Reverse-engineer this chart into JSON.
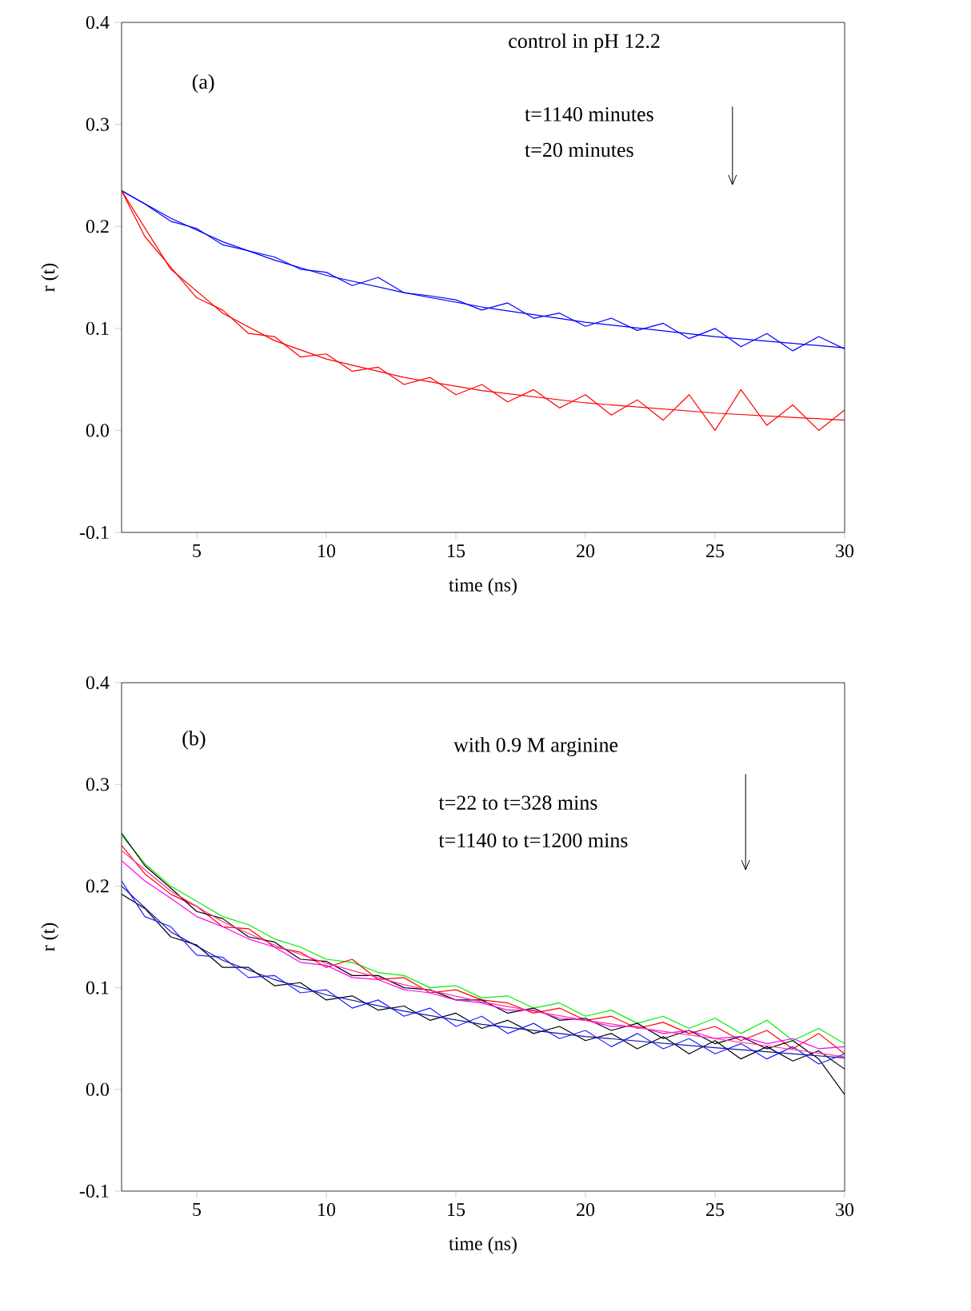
{
  "chart_data": [
    {
      "type": "line",
      "xlabel": "time (ns)",
      "ylabel": "r (t)",
      "xlim": [
        2.1,
        30
      ],
      "ylim": [
        -0.1,
        0.4
      ],
      "xticks": [
        5,
        10,
        15,
        20,
        25,
        30
      ],
      "yticks": [
        -0.1,
        {
          "value": 0,
          "label": "0.0"
        },
        0.1,
        0.2,
        0.3,
        0.4
      ],
      "annotations": [
        "(a)",
        "control in pH 12.2",
        "t=1140 minutes",
        "t=20 minutes"
      ],
      "x": [
        2.1,
        3,
        4,
        5,
        6,
        7,
        8,
        9,
        10,
        11,
        12,
        13,
        14,
        15,
        16,
        17,
        18,
        19,
        20,
        21,
        22,
        23,
        24,
        25,
        26,
        27,
        28,
        29,
        30
      ],
      "series": [
        {
          "color": "#0000ff",
          "values": [
            0.235,
            0.222,
            0.205,
            0.198,
            0.182,
            0.176,
            0.17,
            0.158,
            0.155,
            0.142,
            0.15,
            0.135,
            0.132,
            0.128,
            0.118,
            0.125,
            0.11,
            0.115,
            0.102,
            0.11,
            0.098,
            0.105,
            0.09,
            0.1,
            0.082,
            0.095,
            0.078,
            0.092,
            0.08
          ]
        },
        {
          "color": "#0000ff",
          "x": [
            2.1,
            4,
            6,
            8,
            10,
            13,
            16,
            20,
            25,
            30
          ],
          "values": [
            0.235,
            0.208,
            0.185,
            0.167,
            0.152,
            0.135,
            0.121,
            0.106,
            0.092,
            0.081
          ]
        },
        {
          "color": "#ff0000",
          "values": [
            0.235,
            0.19,
            0.16,
            0.13,
            0.118,
            0.095,
            0.092,
            0.072,
            0.075,
            0.058,
            0.062,
            0.045,
            0.052,
            0.035,
            0.045,
            0.028,
            0.04,
            0.022,
            0.035,
            0.015,
            0.03,
            0.01,
            0.035,
            0.0,
            0.04,
            0.005,
            0.025,
            0.0,
            0.02
          ]
        },
        {
          "color": "#ff0000",
          "x": [
            2.1,
            4,
            6,
            8,
            10,
            13,
            16,
            20,
            25,
            30
          ],
          "values": [
            0.235,
            0.158,
            0.115,
            0.088,
            0.07,
            0.052,
            0.039,
            0.027,
            0.017,
            0.01
          ]
        }
      ]
    },
    {
      "type": "line",
      "xlabel": "time (ns)",
      "ylabel": "r (t)",
      "xlim": [
        2.1,
        30
      ],
      "ylim": [
        -0.1,
        0.4
      ],
      "xticks": [
        5,
        10,
        15,
        20,
        25,
        30
      ],
      "yticks": [
        -0.1,
        {
          "value": 0,
          "label": "0.0"
        },
        0.1,
        0.2,
        0.3,
        0.4
      ],
      "annotations": [
        "(b)",
        "with 0.9 M arginine",
        "t=22 to t=328 mins",
        "t=1140 to t=1200 mins"
      ],
      "x": [
        2.1,
        3,
        4,
        5,
        6,
        7,
        8,
        9,
        10,
        11,
        12,
        13,
        14,
        15,
        16,
        17,
        18,
        19,
        20,
        21,
        22,
        23,
        24,
        25,
        26,
        27,
        28,
        29,
        30
      ],
      "series": [
        {
          "color": "#00ee00",
          "values": [
            0.25,
            0.222,
            0.2,
            0.185,
            0.17,
            0.162,
            0.148,
            0.14,
            0.128,
            0.125,
            0.115,
            0.112,
            0.1,
            0.102,
            0.09,
            0.092,
            0.08,
            0.085,
            0.072,
            0.078,
            0.065,
            0.072,
            0.06,
            0.07,
            0.055,
            0.068,
            0.048,
            0.06,
            0.045
          ]
        },
        {
          "color": "#ff0000",
          "values": [
            0.24,
            0.212,
            0.192,
            0.18,
            0.16,
            0.158,
            0.14,
            0.135,
            0.12,
            0.128,
            0.108,
            0.11,
            0.095,
            0.098,
            0.088,
            0.085,
            0.075,
            0.08,
            0.068,
            0.072,
            0.06,
            0.066,
            0.055,
            0.062,
            0.048,
            0.058,
            0.04,
            0.055,
            0.035
          ]
        },
        {
          "color": "#000000",
          "values": [
            0.252,
            0.22,
            0.198,
            0.175,
            0.168,
            0.15,
            0.145,
            0.128,
            0.126,
            0.112,
            0.112,
            0.1,
            0.098,
            0.088,
            0.088,
            0.075,
            0.08,
            0.068,
            0.07,
            0.058,
            0.065,
            0.05,
            0.058,
            0.045,
            0.052,
            0.04,
            0.048,
            0.03,
            -0.005
          ]
        },
        {
          "color": "#ff00ff",
          "values": [
            0.225,
            0.205,
            0.188,
            0.17,
            0.16,
            0.148,
            0.14,
            0.125,
            0.122,
            0.11,
            0.108,
            0.098,
            0.095,
            0.088,
            0.085,
            0.078,
            0.078,
            0.07,
            0.068,
            0.062,
            0.062,
            0.055,
            0.058,
            0.05,
            0.052,
            0.045,
            0.05,
            0.04,
            0.042
          ]
        },
        {
          "color": "#000000",
          "values": [
            0.192,
            0.178,
            0.15,
            0.142,
            0.12,
            0.12,
            0.102,
            0.105,
            0.088,
            0.092,
            0.078,
            0.082,
            0.068,
            0.075,
            0.06,
            0.068,
            0.055,
            0.062,
            0.048,
            0.055,
            0.04,
            0.052,
            0.035,
            0.048,
            0.03,
            0.042,
            0.028,
            0.038,
            0.02
          ]
        },
        {
          "color": "#2020ff",
          "values": [
            0.205,
            0.17,
            0.16,
            0.132,
            0.13,
            0.11,
            0.112,
            0.095,
            0.098,
            0.08,
            0.088,
            0.072,
            0.08,
            0.062,
            0.072,
            0.055,
            0.065,
            0.05,
            0.058,
            0.042,
            0.055,
            0.04,
            0.05,
            0.035,
            0.045,
            0.03,
            0.042,
            0.025,
            0.035
          ]
        },
        {
          "color": "#ff3399",
          "x": [
            2.1,
            4,
            6,
            8,
            10,
            13,
            16,
            20,
            25,
            30
          ],
          "values": [
            0.235,
            0.195,
            0.165,
            0.142,
            0.124,
            0.103,
            0.086,
            0.068,
            0.05,
            0.032
          ]
        },
        {
          "color": "#1010b0",
          "x": [
            2.1,
            4,
            6,
            8,
            10,
            13,
            16,
            20,
            25,
            30
          ],
          "values": [
            0.2,
            0.155,
            0.127,
            0.108,
            0.093,
            0.077,
            0.064,
            0.052,
            0.041,
            0.031
          ]
        }
      ]
    }
  ]
}
